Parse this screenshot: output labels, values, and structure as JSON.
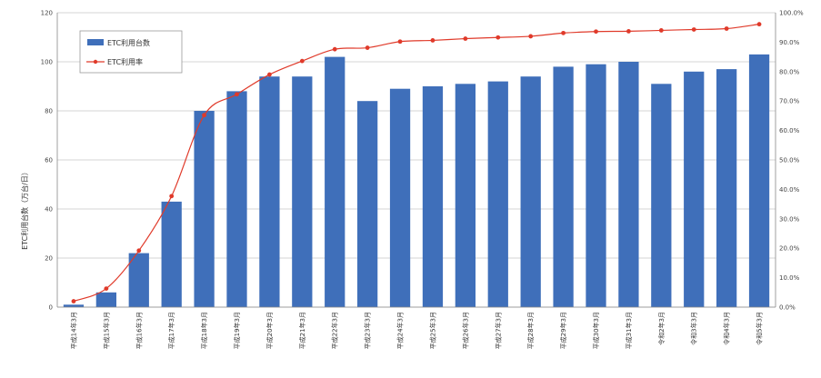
{
  "chart_data": {
    "type": "bar",
    "categories": [
      "平成14年3月",
      "平成15年3月",
      "平成16年3月",
      "平成17年3月",
      "平成18年3月",
      "平成19年3月",
      "平成20年3月",
      "平成21年3月",
      "平成22年3月",
      "平成23年3月",
      "平成24年3月",
      "平成25年3月",
      "平成26年3月",
      "平成27年3月",
      "平成28年3月",
      "平成29年3月",
      "平成30年3月",
      "平成31年3月",
      "令和2年3月",
      "令和3年3月",
      "令和4年3月",
      "令和5年3月"
    ],
    "series": [
      {
        "name": "ETC利用台数",
        "type": "bar",
        "axis": "left",
        "color": "#3f6fba",
        "values": [
          1,
          6,
          22,
          43,
          80,
          88,
          94,
          94,
          102,
          84,
          89,
          90,
          91,
          92,
          94,
          98,
          99,
          100,
          91,
          96,
          97,
          103
        ]
      },
      {
        "name": "ETC利用率",
        "type": "line",
        "axis": "right",
        "color": "#e03a2a",
        "values": [
          2.0,
          6.3,
          19.2,
          37.7,
          65.2,
          72.3,
          79.0,
          83.6,
          87.6,
          88.1,
          90.2,
          90.6,
          91.2,
          91.6,
          92.0,
          93.1,
          93.6,
          93.7,
          94.0,
          94.3,
          94.6,
          96.1
        ]
      }
    ],
    "xlabel": "",
    "ylabel": "ETC利用台数（万台/日）",
    "y_left": {
      "min": 0,
      "max": 120,
      "ticks": [
        "0",
        "20",
        "40",
        "60",
        "80",
        "100",
        "120"
      ]
    },
    "y_right": {
      "min": 0,
      "max": 100,
      "ticks": [
        "0.0%",
        "10.0%",
        "20.0%",
        "30.0%",
        "40.0%",
        "50.0%",
        "60.0%",
        "70.0%",
        "80.0%",
        "90.0%",
        "100.0%"
      ]
    },
    "grid": true,
    "legend_position": "top-left"
  }
}
